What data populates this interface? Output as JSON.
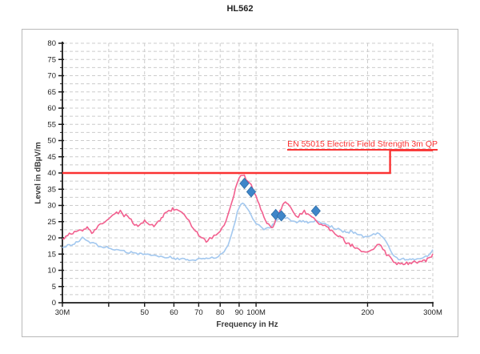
{
  "title": "HL562",
  "colors": {
    "grid": "#cccccc",
    "axis": "#1a1a1a",
    "tick_text": "#222222",
    "panel_border": "#b9b9b9",
    "background": "#ffffff"
  },
  "chart_data": {
    "type": "line",
    "title": "HL562",
    "xlabel": "Frequency in Hz",
    "ylabel": "Level in dBµV/m",
    "x_scale": "log",
    "x_unit": "MHz",
    "xlim": [
      30,
      300
    ],
    "ylim": [
      0,
      80
    ],
    "y_ticks": [
      0,
      5,
      10,
      15,
      20,
      25,
      30,
      35,
      40,
      45,
      50,
      55,
      60,
      65,
      70,
      75,
      80
    ],
    "y_grid_step": 2.5,
    "x_ticks": [
      {
        "value": 30,
        "label": "30M"
      },
      {
        "value": 40,
        "label": ""
      },
      {
        "value": 50,
        "label": "50"
      },
      {
        "value": 60,
        "label": "60"
      },
      {
        "value": 70,
        "label": "70"
      },
      {
        "value": 80,
        "label": "80"
      },
      {
        "value": 90,
        "label": "90"
      },
      {
        "value": 100,
        "label": "100M"
      },
      {
        "value": 200,
        "label": "200"
      },
      {
        "value": 300,
        "label": "300M"
      }
    ],
    "annotation": {
      "text": "EN 55015 Electric Field Strength 3m QP",
      "color": "#fa3232"
    },
    "series": [
      {
        "name": "limit-en55015-qp-3m",
        "type": "step-line",
        "color": "#fa3232",
        "width": 2.4,
        "points": [
          [
            30,
            40
          ],
          [
            230,
            40
          ],
          [
            230,
            47
          ],
          [
            300,
            47
          ]
        ]
      },
      {
        "name": "trace-blue-average",
        "type": "line",
        "color": "#a3c8ef",
        "width": 1.6,
        "noise_db": 0.5,
        "points": [
          [
            30,
            17.0
          ],
          [
            31,
            17.6
          ],
          [
            32,
            18.0
          ],
          [
            33,
            19.0
          ],
          [
            34,
            19.8
          ],
          [
            35,
            19.4
          ],
          [
            36,
            18.4
          ],
          [
            37,
            18.0
          ],
          [
            38,
            17.4
          ],
          [
            40,
            16.8
          ],
          [
            42,
            16.2
          ],
          [
            44,
            15.8
          ],
          [
            46,
            15.4
          ],
          [
            48,
            15.2
          ],
          [
            50,
            15.0
          ],
          [
            52,
            14.8
          ],
          [
            54,
            14.6
          ],
          [
            56,
            14.2
          ],
          [
            58,
            14.0
          ],
          [
            60,
            13.8
          ],
          [
            62,
            13.6
          ],
          [
            64,
            13.4
          ],
          [
            66,
            13.2
          ],
          [
            68,
            13.2
          ],
          [
            70,
            13.4
          ],
          [
            72,
            13.6
          ],
          [
            74,
            13.4
          ],
          [
            76,
            13.8
          ],
          [
            78,
            14.0
          ],
          [
            80,
            14.6
          ],
          [
            82,
            15.6
          ],
          [
            84,
            17.6
          ],
          [
            86,
            21.0
          ],
          [
            88,
            25.6
          ],
          [
            90,
            29.6
          ],
          [
            91,
            30.6
          ],
          [
            92,
            30.4
          ],
          [
            93,
            30.0
          ],
          [
            95,
            28.6
          ],
          [
            97,
            27.0
          ],
          [
            100,
            24.6
          ],
          [
            103,
            23.2
          ],
          [
            105,
            22.8
          ],
          [
            107,
            23.0
          ],
          [
            110,
            23.6
          ],
          [
            112,
            24.6
          ],
          [
            114,
            25.4
          ],
          [
            116,
            26.2
          ],
          [
            118,
            26.4
          ],
          [
            120,
            26.2
          ],
          [
            123,
            25.6
          ],
          [
            126,
            25.2
          ],
          [
            130,
            25.0
          ],
          [
            134,
            25.2
          ],
          [
            138,
            25.0
          ],
          [
            142,
            25.2
          ],
          [
            146,
            25.0
          ],
          [
            150,
            24.6
          ],
          [
            155,
            24.0
          ],
          [
            160,
            23.4
          ],
          [
            165,
            22.8
          ],
          [
            170,
            22.2
          ],
          [
            175,
            21.8
          ],
          [
            180,
            22.0
          ],
          [
            185,
            21.4
          ],
          [
            190,
            21.0
          ],
          [
            195,
            20.6
          ],
          [
            200,
            20.4
          ],
          [
            205,
            20.8
          ],
          [
            210,
            21.2
          ],
          [
            215,
            21.4
          ],
          [
            220,
            20.2
          ],
          [
            225,
            18.6
          ],
          [
            230,
            16.6
          ],
          [
            235,
            14.6
          ],
          [
            240,
            13.8
          ],
          [
            245,
            13.4
          ],
          [
            250,
            13.3
          ],
          [
            255,
            13.2
          ],
          [
            260,
            13.3
          ],
          [
            265,
            13.4
          ],
          [
            270,
            13.4
          ],
          [
            275,
            13.6
          ],
          [
            280,
            13.8
          ],
          [
            285,
            14.2
          ],
          [
            290,
            14.6
          ],
          [
            295,
            15.4
          ],
          [
            300,
            16.4
          ]
        ]
      },
      {
        "name": "trace-pink-peak",
        "type": "line",
        "color": "#f2608f",
        "width": 1.6,
        "noise_db": 0.7,
        "points": [
          [
            30,
            19.5
          ],
          [
            31,
            20.8
          ],
          [
            32,
            21.2
          ],
          [
            33,
            22.6
          ],
          [
            34,
            22.0
          ],
          [
            35,
            23.0
          ],
          [
            36,
            21.6
          ],
          [
            37,
            22.6
          ],
          [
            38,
            24.0
          ],
          [
            39,
            25.2
          ],
          [
            40,
            26.0
          ],
          [
            41,
            26.6
          ],
          [
            42,
            27.4
          ],
          [
            43,
            28.0
          ],
          [
            44,
            27.2
          ],
          [
            45,
            26.4
          ],
          [
            46,
            25.2
          ],
          [
            47,
            24.2
          ],
          [
            48,
            23.6
          ],
          [
            49,
            24.6
          ],
          [
            50,
            25.0
          ],
          [
            51,
            24.4
          ],
          [
            52,
            23.6
          ],
          [
            53,
            24.0
          ],
          [
            54,
            24.6
          ],
          [
            55,
            25.6
          ],
          [
            56,
            26.6
          ],
          [
            57,
            27.6
          ],
          [
            58,
            28.4
          ],
          [
            59,
            28.6
          ],
          [
            60,
            29.0
          ],
          [
            61,
            28.6
          ],
          [
            62,
            28.6
          ],
          [
            63,
            28.0
          ],
          [
            64,
            27.0
          ],
          [
            65,
            26.0
          ],
          [
            66,
            25.0
          ],
          [
            67,
            24.0
          ],
          [
            68,
            22.6
          ],
          [
            70,
            21.0
          ],
          [
            72,
            19.6
          ],
          [
            74,
            19.0
          ],
          [
            75,
            19.6
          ],
          [
            76,
            20.4
          ],
          [
            78,
            21.0
          ],
          [
            80,
            22.0
          ],
          [
            82,
            24.0
          ],
          [
            84,
            27.0
          ],
          [
            86,
            31.0
          ],
          [
            88,
            35.0
          ],
          [
            90,
            38.6
          ],
          [
            91,
            39.4
          ],
          [
            92,
            39.4
          ],
          [
            93,
            39.0
          ],
          [
            95,
            37.6
          ],
          [
            97,
            36.0
          ],
          [
            100,
            33.0
          ],
          [
            103,
            29.0
          ],
          [
            105,
            26.6
          ],
          [
            107,
            24.6
          ],
          [
            110,
            23.0
          ],
          [
            112,
            24.0
          ],
          [
            114,
            26.4
          ],
          [
            116,
            28.4
          ],
          [
            118,
            30.0
          ],
          [
            120,
            31.0
          ],
          [
            122,
            30.4
          ],
          [
            124,
            29.0
          ],
          [
            126,
            27.6
          ],
          [
            128,
            27.0
          ],
          [
            130,
            26.6
          ],
          [
            133,
            27.4
          ],
          [
            135,
            28.0
          ],
          [
            138,
            27.0
          ],
          [
            140,
            26.6
          ],
          [
            143,
            26.0
          ],
          [
            145,
            25.6
          ],
          [
            148,
            24.6
          ],
          [
            150,
            24.2
          ],
          [
            155,
            23.2
          ],
          [
            160,
            22.2
          ],
          [
            165,
            21.2
          ],
          [
            170,
            20.2
          ],
          [
            175,
            18.6
          ],
          [
            180,
            18.0
          ],
          [
            185,
            17.0
          ],
          [
            190,
            16.4
          ],
          [
            195,
            15.6
          ],
          [
            200,
            15.4
          ],
          [
            205,
            16.4
          ],
          [
            210,
            17.4
          ],
          [
            215,
            18.0
          ],
          [
            220,
            16.6
          ],
          [
            225,
            15.0
          ],
          [
            230,
            13.6
          ],
          [
            235,
            12.4
          ],
          [
            240,
            12.0
          ],
          [
            245,
            11.8
          ],
          [
            250,
            12.0
          ],
          [
            255,
            12.2
          ],
          [
            260,
            12.0
          ],
          [
            265,
            12.2
          ],
          [
            270,
            12.4
          ],
          [
            275,
            12.4
          ],
          [
            280,
            12.8
          ],
          [
            285,
            13.0
          ],
          [
            290,
            13.2
          ],
          [
            295,
            13.6
          ],
          [
            300,
            15.0
          ]
        ]
      },
      {
        "name": "final-measurement-markers",
        "type": "scatter",
        "marker": "diamond",
        "color": "#3f86c9",
        "edge": "#2f6ea8",
        "size": 13,
        "points": [
          [
            93,
            36.8
          ],
          [
            97,
            34.2
          ],
          [
            113,
            27.2
          ],
          [
            117,
            26.8
          ],
          [
            145,
            28.3
          ]
        ]
      }
    ]
  }
}
